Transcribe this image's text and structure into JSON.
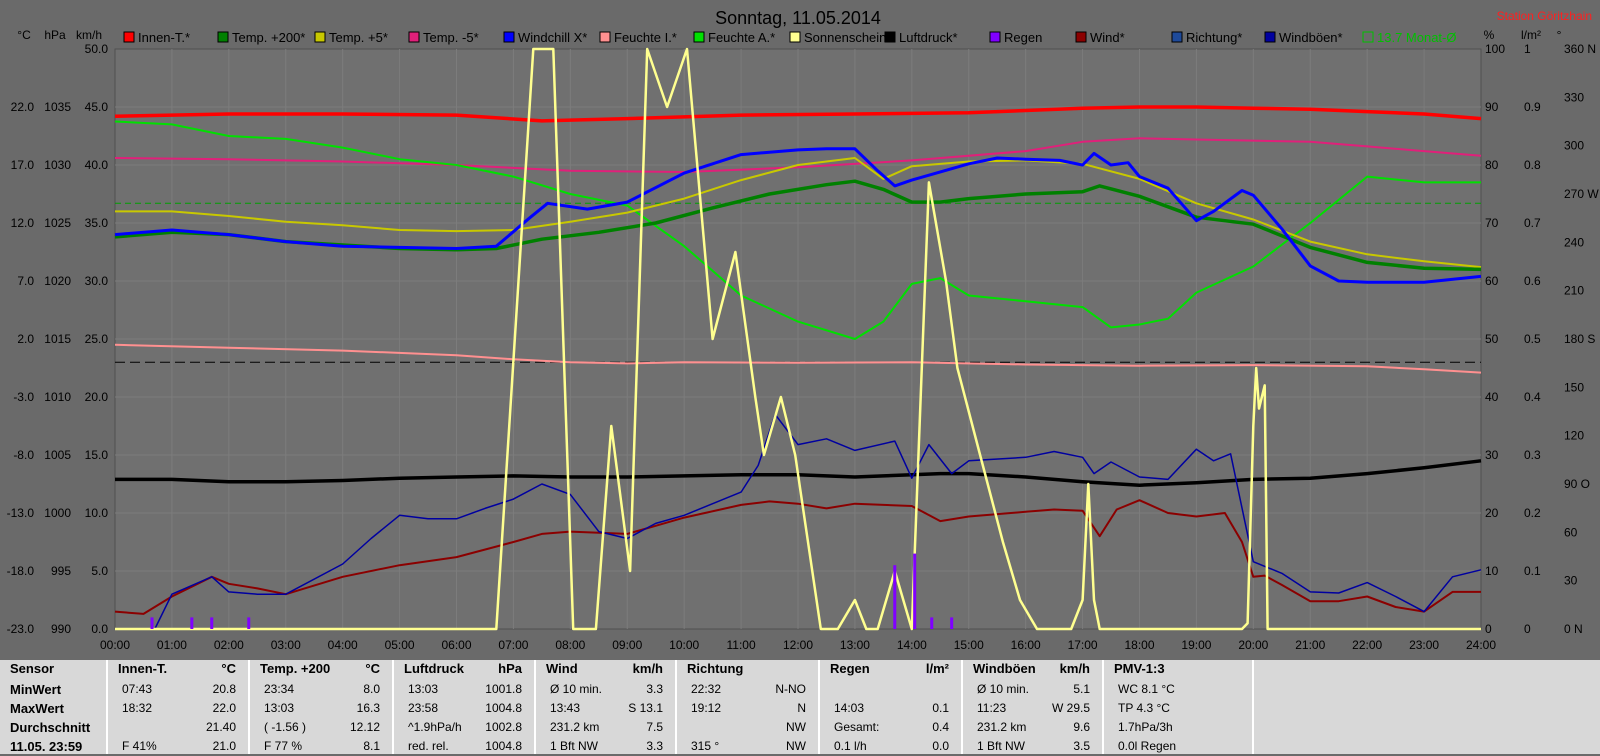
{
  "chart_data": {
    "type": "line",
    "title": "Sonntag, 11.05.2014",
    "station": "Station Göritzhain",
    "x_ticks": [
      "00:00",
      "01:00",
      "02:00",
      "03:00",
      "04:00",
      "05:00",
      "06:00",
      "07:00",
      "08:00",
      "09:00",
      "10:00",
      "11:00",
      "12:00",
      "13:00",
      "14:00",
      "15:00",
      "16:00",
      "17:00",
      "18:00",
      "19:00",
      "20:00",
      "21:00",
      "22:00",
      "23:00",
      "24:00"
    ],
    "axes": {
      "temp_c": {
        "unit": "°C",
        "ticks": [
          "22.0",
          "17.0",
          "12.0",
          "7.0",
          "2.0",
          "-3.0",
          "-8.0",
          "-13.0",
          "-18.0",
          "-23.0"
        ]
      },
      "hpa": {
        "unit": "hPa",
        "ticks": [
          "1035",
          "1030",
          "1025",
          "1020",
          "1015",
          "1010",
          "1005",
          "1000",
          "995",
          "990"
        ]
      },
      "kmh": {
        "unit": "km/h",
        "ticks": [
          "50.0",
          "45.0",
          "40.0",
          "35.0",
          "30.0",
          "25.0",
          "20.0",
          "15.0",
          "10.0",
          "5.0",
          "0.0"
        ],
        "range": [
          0,
          50
        ]
      },
      "pct": {
        "unit": "%",
        "ticks": [
          "100",
          "90",
          "80",
          "70",
          "60",
          "50",
          "40",
          "30",
          "20",
          "10",
          "0"
        ],
        "range": [
          0,
          100
        ]
      },
      "rain": {
        "unit": "l/m²",
        "ticks": [
          "1",
          "0.9",
          "0.8",
          "0.7",
          "0.6",
          "0.5",
          "0.4",
          "0.3",
          "0.2",
          "0.1",
          "0"
        ],
        "range": [
          0,
          1
        ]
      },
      "dir": {
        "unit": "°",
        "ticks": [
          "360 N",
          "330",
          "300",
          "270 W",
          "240",
          "210",
          "180 S",
          "150",
          "120",
          "90 O",
          "60",
          "30",
          "0 N"
        ],
        "range": [
          0,
          360
        ]
      }
    },
    "legend": [
      {
        "name": "Innen-T.*",
        "color": "#ff0000"
      },
      {
        "name": "Temp. +200*",
        "color": "#008000"
      },
      {
        "name": "Temp. +5*",
        "color": "#c8c800"
      },
      {
        "name": "Temp. -5*",
        "color": "#e0207a"
      },
      {
        "name": "Windchill X*",
        "color": "#0000ff"
      },
      {
        "name": "Feuchte I.*",
        "color": "#ff9090"
      },
      {
        "name": "Feuchte A.*",
        "color": "#00e000"
      },
      {
        "name": "Sonnenschein",
        "color": "#ffff90"
      },
      {
        "name": "Luftdruck*",
        "color": "#000000"
      },
      {
        "name": "Regen",
        "color": "#8000ff"
      },
      {
        "name": "Wind*",
        "color": "#8b0000"
      },
      {
        "name": "Richtung*",
        "color": "#1e4a9a"
      },
      {
        "name": "Windböen*",
        "color": "#0000a0"
      },
      {
        "name": "13.7 Monat-Ø",
        "color": "#00c000"
      }
    ],
    "reference_lines": {
      "monthly_avg_c": 13.7,
      "zero_c": 0.0
    },
    "series": [
      {
        "name": "Innen-T.*",
        "axis": "temp_c",
        "x": [
          0,
          1,
          2,
          4,
          6,
          7.5,
          9,
          11,
          13,
          15,
          17,
          18,
          19,
          20,
          21,
          22,
          23,
          24
        ],
        "y": [
          21.2,
          21.3,
          21.4,
          21.4,
          21.3,
          20.8,
          21.0,
          21.3,
          21.4,
          21.5,
          21.9,
          22.0,
          22.0,
          21.9,
          21.8,
          21.6,
          21.4,
          21.0
        ]
      },
      {
        "name": "Temp. +200*",
        "axis": "temp_c",
        "x": [
          0,
          1,
          2,
          3,
          4,
          5,
          6,
          6.7,
          7.5,
          8.5,
          9.5,
          10.5,
          11.5,
          12.5,
          13,
          13.5,
          14,
          14.5,
          15,
          16,
          17,
          17.3,
          18,
          19,
          20,
          21,
          22,
          23,
          24
        ],
        "y": [
          10.8,
          11.2,
          11.0,
          10.4,
          10.1,
          9.8,
          9.7,
          9.8,
          10.6,
          11.2,
          12.0,
          13.3,
          14.5,
          15.3,
          15.6,
          14.9,
          13.8,
          13.8,
          14.1,
          14.5,
          14.7,
          15.2,
          14.3,
          12.5,
          11.9,
          9.9,
          8.6,
          8.1,
          8.0
        ]
      },
      {
        "name": "Temp. +5*",
        "axis": "temp_c",
        "x": [
          0,
          1,
          2,
          3,
          4,
          5,
          6,
          7,
          8,
          9,
          10,
          11,
          12,
          13,
          13.5,
          14,
          15,
          16,
          17,
          18,
          19,
          20,
          21,
          22,
          23,
          24
        ],
        "y": [
          13.0,
          13.0,
          12.6,
          12.1,
          11.8,
          11.4,
          11.3,
          11.4,
          12.1,
          12.9,
          14.1,
          15.7,
          17.0,
          17.6,
          15.8,
          16.9,
          17.3,
          17.4,
          17.1,
          15.8,
          13.7,
          12.3,
          10.4,
          9.3,
          8.7,
          8.2
        ]
      },
      {
        "name": "Temp. -5*",
        "axis": "temp_c",
        "x": [
          0,
          2,
          4,
          6,
          8,
          10,
          12,
          14,
          16,
          17,
          18,
          19,
          20,
          21,
          22,
          23,
          24
        ],
        "y": [
          17.6,
          17.5,
          17.3,
          17.0,
          16.5,
          16.4,
          16.8,
          17.4,
          18.2,
          19.0,
          19.3,
          19.2,
          19.1,
          19.0,
          18.6,
          18.2,
          17.8
        ]
      },
      {
        "name": "Windchill X*",
        "axis": "temp_c",
        "x": [
          0,
          1,
          2,
          3,
          4,
          5,
          6,
          6.7,
          7.3,
          7.6,
          8.3,
          9,
          10,
          11,
          12,
          12.5,
          13,
          13.4,
          13.7,
          14,
          15,
          15.5,
          16,
          16.6,
          17,
          17.2,
          17.5,
          17.8,
          18,
          18.5,
          19,
          19.3,
          19.8,
          20,
          20.5,
          21,
          21.5,
          22,
          23,
          24
        ],
        "y": [
          11.0,
          11.4,
          11.0,
          10.4,
          10.0,
          9.9,
          9.8,
          10.0,
          12.5,
          13.7,
          13.2,
          13.8,
          16.3,
          17.9,
          18.3,
          18.4,
          18.4,
          16.5,
          15.2,
          15.7,
          17.1,
          17.6,
          17.5,
          17.4,
          17.0,
          18.0,
          17.0,
          17.2,
          16.0,
          15.0,
          12.2,
          13.0,
          14.8,
          14.4,
          11.5,
          8.3,
          7.0,
          6.9,
          6.9,
          7.4
        ]
      },
      {
        "name": "Feuchte I.*",
        "axis": "pct",
        "x": [
          0,
          2,
          4,
          6,
          7,
          8,
          9,
          10,
          12,
          14,
          16,
          18,
          20,
          22,
          23,
          24
        ],
        "y": [
          49.0,
          48.5,
          48.0,
          47.2,
          46.5,
          46.0,
          45.8,
          46.0,
          45.9,
          46.0,
          45.6,
          45.4,
          45.5,
          45.3,
          44.8,
          44.2
        ]
      },
      {
        "name": "Feuchte A.*",
        "axis": "pct",
        "x": [
          0,
          1,
          2,
          3,
          4,
          5,
          6,
          7,
          8,
          9,
          10,
          11,
          12,
          13,
          13.5,
          14,
          14.5,
          15,
          16,
          17,
          17.5,
          18,
          18.5,
          19,
          20,
          21,
          22,
          23,
          24
        ],
        "y": [
          87.5,
          87.0,
          85.0,
          84.5,
          83.0,
          81.0,
          80.0,
          78.0,
          75.0,
          73.0,
          66.0,
          57.5,
          53.0,
          50.0,
          53.0,
          59.5,
          60.5,
          57.5,
          56.5,
          55.5,
          52.0,
          52.5,
          53.5,
          58.0,
          62.5,
          70.0,
          78.0,
          77.0,
          77.0
        ]
      },
      {
        "name": "Sonnenschein",
        "axis": "pct",
        "x": [
          0,
          6.7,
          7.35,
          7.7,
          8.05,
          8.45,
          8.72,
          9.05,
          9.35,
          9.7,
          10.05,
          10.5,
          10.9,
          11.25,
          11.4,
          11.7,
          11.95,
          12.4,
          12.7,
          13,
          13.2,
          13.4,
          13.7,
          14.0,
          14.3,
          14.6,
          14.8,
          15.2,
          15.6,
          15.9,
          16.2,
          16.5,
          16.8,
          17.0,
          17.1,
          17.2,
          17.3,
          17.6,
          18.0,
          19.0,
          19.4,
          19.8,
          19.9,
          20.0,
          20.05,
          20.1,
          20.2,
          20.25,
          24
        ],
        "y": [
          0,
          0,
          100,
          100,
          0,
          0,
          35,
          10,
          100,
          90,
          100,
          50,
          65,
          40,
          30,
          40,
          30,
          0,
          0,
          5,
          0,
          0,
          10,
          0,
          77,
          60,
          45,
          30,
          15,
          5,
          0,
          0,
          0,
          5,
          25,
          5,
          0,
          0,
          0,
          0,
          0,
          0,
          1,
          35,
          45,
          38,
          42,
          0,
          0
        ]
      },
      {
        "name": "Luftdruck*",
        "axis": "hpa",
        "x": [
          0,
          1,
          2,
          3,
          4,
          5,
          6,
          7,
          8,
          9,
          10,
          11,
          12,
          13,
          13.5,
          14,
          14.5,
          15,
          16,
          17,
          18,
          19,
          20,
          21,
          22,
          23,
          24
        ],
        "y": [
          1002.9,
          1002.9,
          1002.7,
          1002.7,
          1002.8,
          1003.0,
          1003.1,
          1003.2,
          1003.1,
          1003.1,
          1003.2,
          1003.3,
          1003.3,
          1003.1,
          1003.2,
          1003.3,
          1003.4,
          1003.4,
          1003.1,
          1002.7,
          1002.4,
          1002.6,
          1002.9,
          1003.0,
          1003.4,
          1003.9,
          1004.5
        ]
      },
      {
        "name": "Wind*",
        "axis": "kmh",
        "x": [
          0,
          0.5,
          1,
          1.7,
          2,
          2.5,
          3,
          4,
          5,
          6,
          7,
          7.5,
          8,
          9,
          9.5,
          10,
          11,
          11.5,
          12,
          12.5,
          13,
          14,
          14.5,
          15,
          16,
          16.5,
          17,
          17.3,
          17.6,
          18,
          18.5,
          19,
          19.5,
          19.8,
          20,
          20.2,
          20.5,
          21,
          21.5,
          22,
          22.5,
          23,
          23.5,
          24
        ],
        "y": [
          1.5,
          1.3,
          2.8,
          4.5,
          3.9,
          3.5,
          3.0,
          4.5,
          5.5,
          6.2,
          7.5,
          8.2,
          8.4,
          8.2,
          8.9,
          9.6,
          10.7,
          11.0,
          10.8,
          10.4,
          10.8,
          10.6,
          9.3,
          9.7,
          10.1,
          10.3,
          10.2,
          8.0,
          10.3,
          11.1,
          10.0,
          9.7,
          10.0,
          7.5,
          4.5,
          4.6,
          3.8,
          2.4,
          2.4,
          2.8,
          1.9,
          1.5,
          3.2,
          3.2
        ]
      },
      {
        "name": "Windböen*",
        "axis": "kmh",
        "x": [
          0,
          0.7,
          1,
          1.7,
          2,
          2.5,
          3,
          4,
          4.5,
          5,
          5.5,
          6,
          6.5,
          7,
          7.5,
          8,
          8.5,
          9,
          9.5,
          10,
          10.5,
          11,
          11.3,
          11.6,
          12,
          12.5,
          13,
          13.7,
          14,
          14.3,
          14.7,
          15,
          16,
          16.5,
          17,
          17.2,
          17.5,
          18,
          18.5,
          19,
          19.3,
          19.6,
          20,
          20.5,
          21,
          21.5,
          22,
          22.5,
          23,
          23.5,
          24
        ],
        "y": [
          0.0,
          0.0,
          3.0,
          4.5,
          3.2,
          3.0,
          3.0,
          5.6,
          7.8,
          9.8,
          9.5,
          9.5,
          10.4,
          11.2,
          12.5,
          11.6,
          8.4,
          7.8,
          9.1,
          9.8,
          10.8,
          11.8,
          14.1,
          18.5,
          15.9,
          16.4,
          15.4,
          16.2,
          13.0,
          15.9,
          13.4,
          14.5,
          14.8,
          15.3,
          14.8,
          13.4,
          14.4,
          13.1,
          12.9,
          15.5,
          14.5,
          15.1,
          5.8,
          4.8,
          3.2,
          3.1,
          4.0,
          2.8,
          1.5,
          4.5,
          5.1
        ]
      },
      {
        "name": "Regen",
        "axis": "rain",
        "type": "bar",
        "x": [
          0.65,
          1.35,
          1.7,
          2.35,
          13.7,
          14.05,
          14.35,
          14.7
        ],
        "y": [
          0.02,
          0.02,
          0.02,
          0.02,
          0.11,
          0.13,
          0.02,
          0.02
        ]
      }
    ]
  },
  "table": {
    "columns": [
      {
        "name": "sensor",
        "header": "Sensor",
        "unit": "",
        "rows": [
          {
            "l": "MinWert",
            "r": ""
          },
          {
            "l": "MaxWert",
            "r": ""
          },
          {
            "l": "Durchschnitt",
            "r": ""
          },
          {
            "l": "11.05. 23:59",
            "r": ""
          }
        ]
      },
      {
        "name": "innen",
        "header": "Innen-T.",
        "unit": "°C",
        "rows": [
          {
            "l": "07:43",
            "r": "20.8"
          },
          {
            "l": "18:32",
            "r": "22.0"
          },
          {
            "l": "",
            "r": "21.40"
          },
          {
            "l": "F 41%",
            "r": "21.0"
          }
        ]
      },
      {
        "name": "temp200",
        "header": "Temp. +200",
        "unit": "°C",
        "rows": [
          {
            "l": "23:34",
            "r": "8.0"
          },
          {
            "l": "13:03",
            "r": "16.3"
          },
          {
            "l": "( -1.56 )",
            "r": "12.12"
          },
          {
            "l": "F 77 %",
            "r": "8.1"
          }
        ]
      },
      {
        "name": "luftdruck",
        "header": "Luftdruck",
        "unit": "hPa",
        "rows": [
          {
            "l": "13:03",
            "r": "1001.8"
          },
          {
            "l": "23:58",
            "r": "1004.8"
          },
          {
            "l": "^1.9hPa/h",
            "r": "1002.8"
          },
          {
            "l": "red. rel.",
            "r": "1004.8"
          }
        ]
      },
      {
        "name": "wind",
        "header": "Wind",
        "unit": "km/h",
        "rows": [
          {
            "l": "Ø 10 min.",
            "r": "3.3"
          },
          {
            "l": "13:43",
            "r": "S 13.1"
          },
          {
            "l": "231.2 km",
            "r": "7.5"
          },
          {
            "l": "1 Bft NW",
            "r": "3.3"
          }
        ]
      },
      {
        "name": "richtung",
        "header": "Richtung",
        "unit": "",
        "rows": [
          {
            "l": "22:32",
            "r": "N-NO"
          },
          {
            "l": "19:12",
            "r": "N"
          },
          {
            "l": "",
            "r": "NW"
          },
          {
            "l": "315 °",
            "r": "NW"
          }
        ]
      },
      {
        "name": "regen",
        "header": "Regen",
        "unit": "l/m²",
        "rows": [
          {
            "l": "",
            "r": ""
          },
          {
            "l": "14:03",
            "r": "0.1"
          },
          {
            "l": "Gesamt:",
            "r": "0.4"
          },
          {
            "l": "0.1 l/h",
            "r": "0.0"
          }
        ]
      },
      {
        "name": "windboeen",
        "header": "Windböen",
        "unit": "km/h",
        "rows": [
          {
            "l": "Ø 10 min.",
            "r": "5.1"
          },
          {
            "l": "11:23",
            "r": "W 29.5"
          },
          {
            "l": "231.2 km",
            "r": "9.6"
          },
          {
            "l": "1 Bft NW",
            "r": "3.5"
          }
        ]
      },
      {
        "name": "pmv",
        "header": "PMV-1:3",
        "unit": "",
        "rows": [
          {
            "l": "WC 8.1 °C",
            "r": ""
          },
          {
            "l": "TP 4.3 °C",
            "r": ""
          },
          {
            "l": "1.7hPa/3h",
            "r": ""
          },
          {
            "l": "0.0l Regen",
            "r": ""
          }
        ]
      }
    ]
  }
}
